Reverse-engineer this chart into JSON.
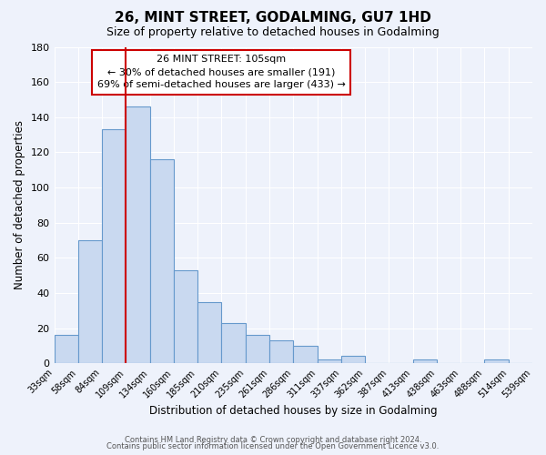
{
  "title": "26, MINT STREET, GODALMING, GU7 1HD",
  "subtitle": "Size of property relative to detached houses in Godalming",
  "xlabel": "Distribution of detached houses by size in Godalming",
  "ylabel": "Number of detached properties",
  "footer_line1": "Contains HM Land Registry data © Crown copyright and database right 2024.",
  "footer_line2": "Contains public sector information licensed under the Open Government Licence v3.0.",
  "bin_labels": [
    "33sqm",
    "58sqm",
    "84sqm",
    "109sqm",
    "134sqm",
    "160sqm",
    "185sqm",
    "210sqm",
    "235sqm",
    "261sqm",
    "286sqm",
    "311sqm",
    "337sqm",
    "362sqm",
    "387sqm",
    "413sqm",
    "438sqm",
    "463sqm",
    "488sqm",
    "514sqm",
    "539sqm"
  ],
  "bar_heights": [
    16,
    70,
    133,
    146,
    116,
    53,
    35,
    23,
    16,
    13,
    10,
    2,
    4,
    0,
    0,
    2,
    0,
    0,
    2,
    0
  ],
  "bar_facecolor": "#c9d9f0",
  "bar_edgecolor": "#6699cc",
  "bg_color": "#eef2fb",
  "grid_color": "#d8dff0",
  "property_line_x": 3,
  "property_line_color": "#cc0000",
  "annotation_text_line1": "26 MINT STREET: 105sqm",
  "annotation_text_line2": "← 30% of detached houses are smaller (191)",
  "annotation_text_line3": "69% of semi-detached houses are larger (433) →",
  "annotation_box_edgecolor": "#cc0000",
  "annotation_box_facecolor": "#ffffff",
  "ylim": [
    0,
    180
  ],
  "yticks": [
    0,
    20,
    40,
    60,
    80,
    100,
    120,
    140,
    160,
    180
  ],
  "n_bars": 20
}
